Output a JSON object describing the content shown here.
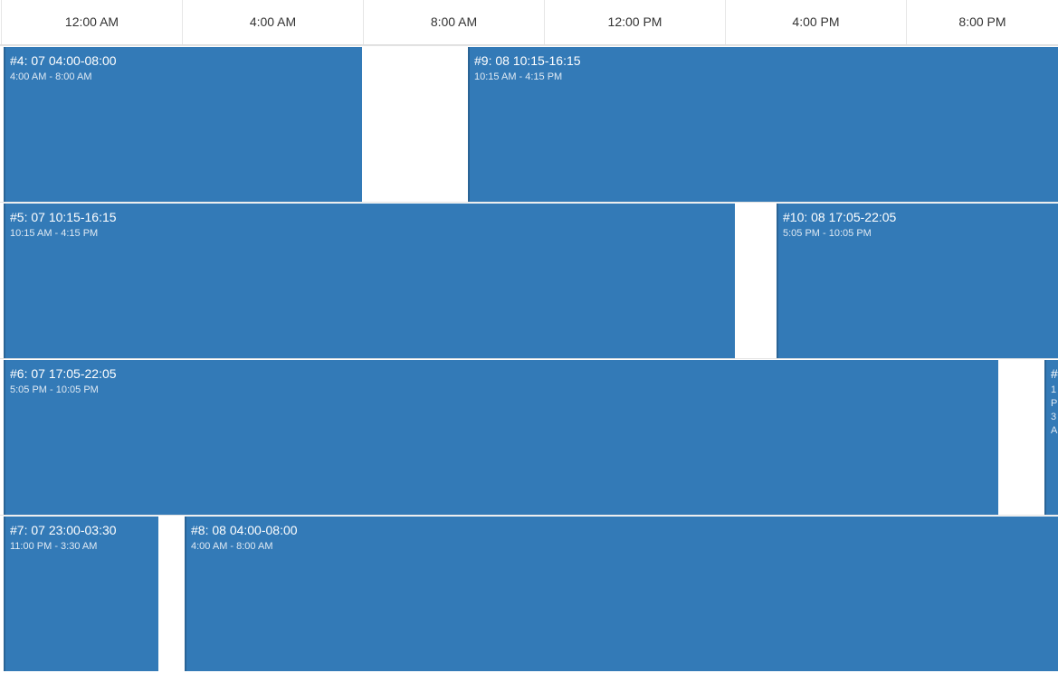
{
  "timeline": {
    "hours": [
      "12:00 AM",
      "4:00 AM",
      "8:00 AM",
      "12:00 PM",
      "4:00 PM",
      "8:00 PM"
    ]
  },
  "colors": {
    "event_bg": "#337ab7",
    "event_border": "#2a6496"
  },
  "events": [
    {
      "title": "#4: 07 04:00-08:00",
      "time": "4:00 AM - 8:00 AM"
    },
    {
      "title": "#9: 08 10:15-16:15",
      "time": "10:15 AM - 4:15 PM"
    },
    {
      "title": "#5: 07 10:15-16:15",
      "time": "10:15 AM - 4:15 PM"
    },
    {
      "title": "#10: 08 17:05-22:05",
      "time": "5:05 PM - 10:05 PM"
    },
    {
      "title": "#6: 07 17:05-22:05",
      "time": "5:05 PM - 10:05 PM"
    },
    {
      "title": "#",
      "time": "1 P 3 A"
    },
    {
      "title": "#7: 07 23:00-03:30",
      "time": "11:00 PM - 3:30 AM"
    },
    {
      "title": "#8: 08 04:00-08:00",
      "time": "4:00 AM - 8:00 AM"
    }
  ]
}
